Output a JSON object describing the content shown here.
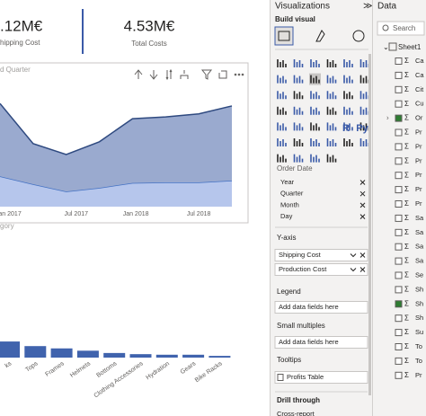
{
  "cards": [
    {
      "value": ".12M€",
      "label": "hipping Cost"
    },
    {
      "value": "4.53M€",
      "label": "Total Costs"
    }
  ],
  "area_chart": {
    "type": "area",
    "title": "d Quarter",
    "x": [
      0,
      1,
      2,
      3,
      4,
      5,
      6,
      7
    ],
    "xlim": [
      0,
      7
    ],
    "xticks": [
      {
        "value": 0.3,
        "label": "an 2017"
      },
      {
        "value": 2.3,
        "label": "Jul 2017"
      },
      {
        "value": 4.1,
        "label": "Jan 2018"
      },
      {
        "value": 6,
        "label": "Jul 2018"
      }
    ],
    "ylim": [
      0,
      100
    ],
    "series": [
      {
        "name": "Shipping Cost",
        "color": "#b6c6ec",
        "line_color": "#4472c4",
        "values": [
          25,
          18.5,
          12.5,
          15.5,
          19.5,
          20,
          20,
          21.5
        ]
      },
      {
        "name": "Production Cost",
        "color": "#9aaacf",
        "line_color": "#2f4a80",
        "values": [
          60,
          33.5,
          30.5,
          38,
          53,
          54,
          56.5,
          61.5
        ]
      }
    ]
  },
  "bar_chart": {
    "type": "bar",
    "title": "gory",
    "color": "#4063ad",
    "ylim": [
      0,
      100
    ],
    "categories": [
      "ks",
      "Tops",
      "Frames",
      "Helmets",
      "Bottoms",
      "Clothing Accessories",
      "Hydration",
      "Gears",
      "Bike Racks"
    ],
    "values": [
      14,
      10,
      8,
      6,
      4,
      3,
      2.5,
      2.5,
      1.5
    ]
  },
  "viz_pane": {
    "title": "Visualizations",
    "collapse": "≫",
    "build_visual": "Build visual",
    "icon_texts": [
      "R",
      "Py"
    ],
    "cut_heading": "Order Date",
    "date_fields": [
      "Year",
      "Quarter",
      "Month",
      "Day"
    ],
    "y_axis": {
      "label": "Y-axis",
      "fields": [
        "Shipping Cost",
        "Production Cost"
      ]
    },
    "legend": {
      "label": "Legend",
      "placeholder": "Add data fields here"
    },
    "small_multiples": {
      "label": "Small multiples",
      "placeholder": "Add data fields here"
    },
    "tooltips": {
      "label": "Tooltips",
      "field": "Profits Table"
    },
    "drill_through": "Drill through",
    "cross_report": "Cross-report"
  },
  "data_pane": {
    "title": "Data",
    "search": "Search",
    "table": "Sheet1",
    "fields": [
      "Ca",
      "Ca",
      "Cit",
      "Cu",
      "Or",
      "Pr",
      "Pr",
      "Pr",
      "Pr",
      "Pr",
      "Pr",
      "Sa",
      "Sa",
      "Sa",
      "Sa",
      "Se",
      "Sh",
      "Sh",
      "Sh",
      "Su",
      "To",
      "To",
      "Pr"
    ]
  }
}
